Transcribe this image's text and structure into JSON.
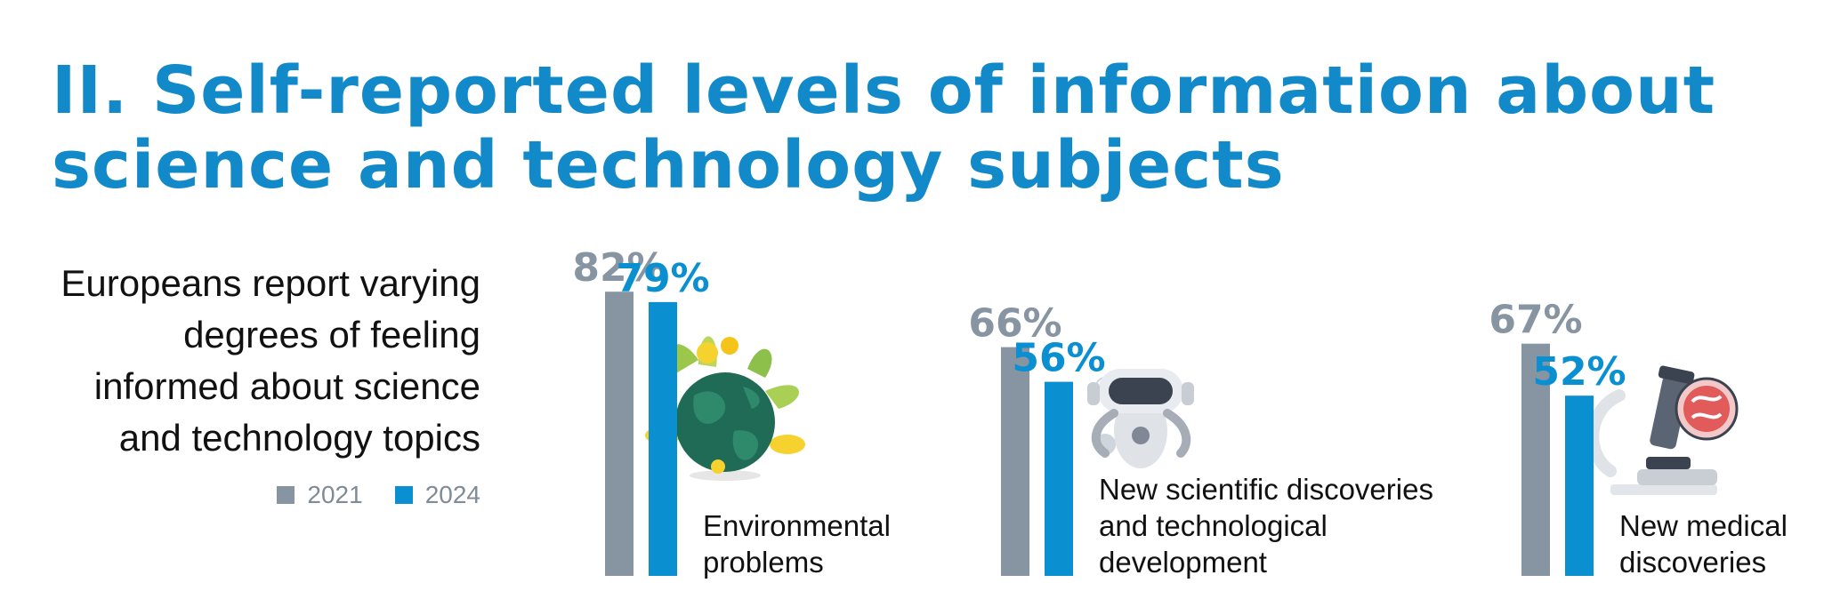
{
  "title_lines": [
    "II. Self-reported levels of information about",
    "science and technology subjects"
  ],
  "intro_lines": [
    "Europeans report varying",
    "degrees of feeling",
    "informed about science",
    "and technology topics"
  ],
  "colors": {
    "title": "#1289c9",
    "y2021": "#8795a3",
    "y2024": "#0a8fd1"
  },
  "icons": [
    "globe-with-plants-icon",
    "robot-icon",
    "microscope-icon"
  ],
  "chart_data": {
    "type": "bar",
    "title": "",
    "xlabel": "",
    "ylabel": "",
    "ylim": [
      0,
      100
    ],
    "grid": false,
    "legend": "left-bottom",
    "categories": [
      "Environmental problems",
      "New scientific discoveries and technological development",
      "New medical discoveries"
    ],
    "category_label_lines": [
      [
        "Environmental",
        "problems"
      ],
      [
        "New scientific discoveries",
        "and technological",
        "development"
      ],
      [
        "New medical",
        "discoveries"
      ]
    ],
    "series": [
      {
        "name": "2021",
        "values": [
          82,
          66,
          67
        ],
        "labels": [
          "82%",
          "66%",
          "67%"
        ]
      },
      {
        "name": "2024",
        "values": [
          79,
          56,
          52
        ],
        "labels": [
          "79%",
          "56%",
          "52%"
        ]
      }
    ]
  }
}
